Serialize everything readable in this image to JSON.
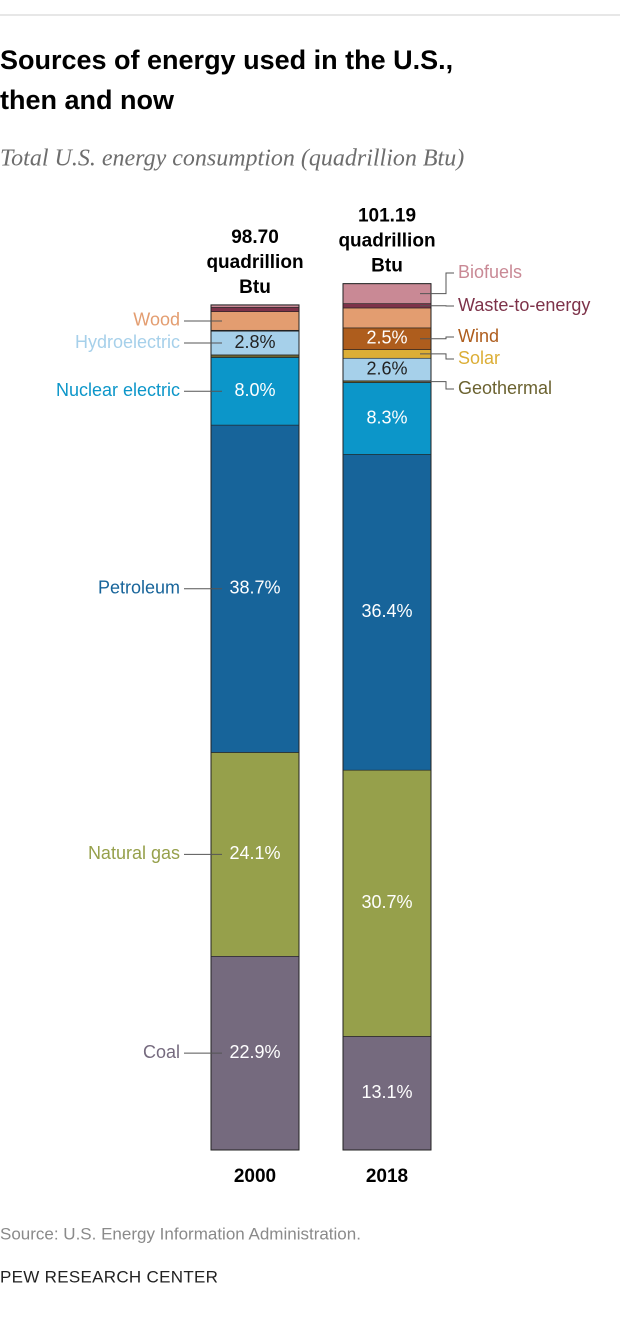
{
  "chart_data": {
    "type": "bar",
    "stacked": true,
    "title": "Sources of energy used in the U.S., then and now",
    "subtitle": "Total U.S. energy consumption (quadrillion Btu)",
    "categories": [
      "2000",
      "2018"
    ],
    "totals": [
      98.7,
      101.19
    ],
    "total_labels": [
      "98.70 quadrillion Btu",
      "101.19 quadrillion Btu"
    ],
    "series": [
      {
        "name": "Coal",
        "color": "#756a7e",
        "values": [
          22.9,
          13.1
        ],
        "value_labels": [
          "22.9%",
          "13.1%"
        ]
      },
      {
        "name": "Natural gas",
        "color": "#96a04b",
        "values": [
          24.1,
          30.7
        ],
        "value_labels": [
          "24.1%",
          "30.7%"
        ]
      },
      {
        "name": "Petroleum",
        "color": "#17649a",
        "values": [
          38.7,
          36.4
        ],
        "value_labels": [
          "38.7%",
          "36.4%"
        ]
      },
      {
        "name": "Nuclear electric",
        "color": "#0c96c9",
        "values": [
          8.0,
          8.3
        ],
        "value_labels": [
          "8.0%",
          "8.3%"
        ]
      },
      {
        "name": "Geothermal",
        "color": "#6b6230",
        "values": [
          0.3,
          0.2
        ]
      },
      {
        "name": "Hydroelectric",
        "color": "#a6d0ea",
        "values": [
          2.8,
          2.6
        ],
        "value_labels": [
          "2.8%",
          "2.6%"
        ]
      },
      {
        "name": "Solar",
        "color": "#dcae36",
        "values": [
          0.06,
          1.0
        ]
      },
      {
        "name": "Wind",
        "color": "#ae5d1d",
        "values": [
          0.05,
          2.5
        ],
        "value_labels": [
          null,
          "2.5%"
        ]
      },
      {
        "name": "Wood",
        "color": "#e39d70",
        "values": [
          2.2,
          2.3
        ]
      },
      {
        "name": "Waste-to-energy",
        "color": "#7d3249",
        "values": [
          0.5,
          0.5
        ]
      },
      {
        "name": "Biofuels",
        "color": "#c98995",
        "values": [
          0.3,
          2.3
        ]
      }
    ],
    "source": "Source: U.S. Energy Information Administration.",
    "credit": "PEW RESEARCH CENTER"
  }
}
